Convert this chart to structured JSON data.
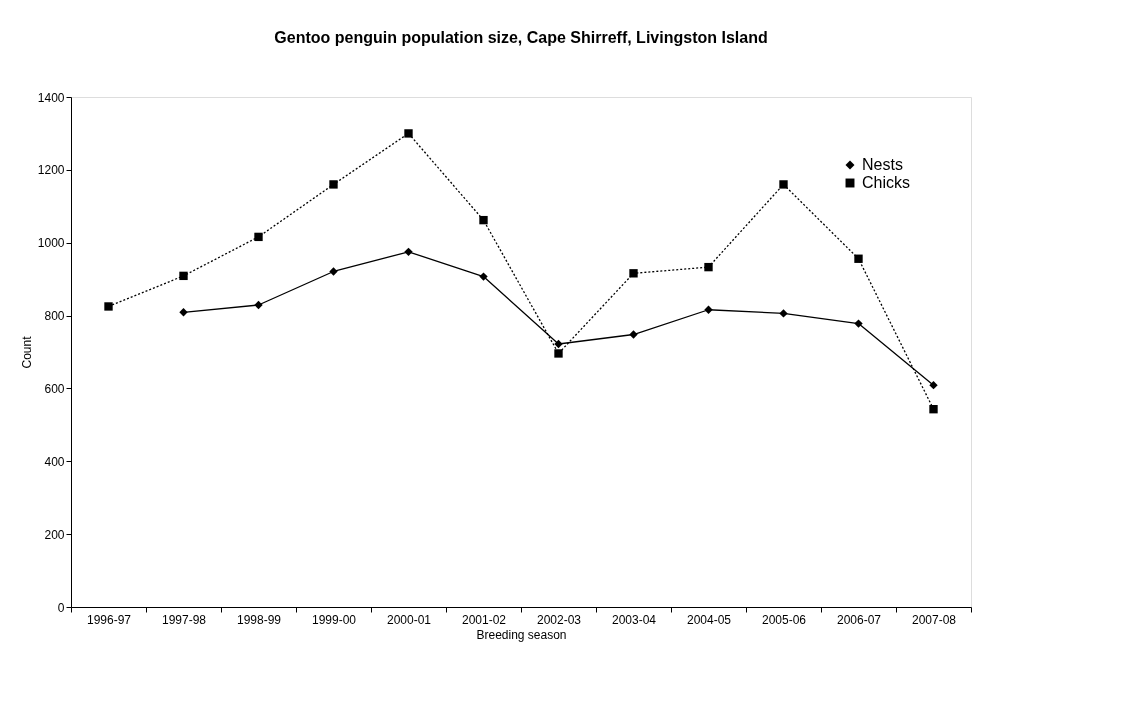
{
  "chart_data": {
    "type": "line",
    "title": "Gentoo penguin population size, Cape Shirreff, Livingston Island",
    "xlabel": "Breeding season",
    "ylabel": "Count",
    "categories": [
      "1996-97",
      "1997-98",
      "1998-99",
      "1999-00",
      "2000-01",
      "2001-02",
      "2002-03",
      "2003-04",
      "2004-05",
      "2005-06",
      "2006-07",
      "2007-08"
    ],
    "series": [
      {
        "name": "Nests",
        "color": "#000000",
        "marker": "diamond",
        "line_style": "solid",
        "values": [
          null,
          809,
          829,
          921,
          975,
          907,
          722,
          748,
          816,
          806,
          778,
          609
        ]
      },
      {
        "name": "Chicks",
        "color": "#000000",
        "marker": "square",
        "line_style": "dotted",
        "values": [
          825,
          909,
          1016,
          1160,
          1300,
          1062,
          696,
          916,
          933,
          1160,
          956,
          543
        ]
      }
    ],
    "ylim": [
      0,
      1400
    ],
    "yticks": [
      0,
      200,
      400,
      600,
      800,
      1000,
      1200,
      1400
    ],
    "grid": false,
    "legend": "top right"
  }
}
